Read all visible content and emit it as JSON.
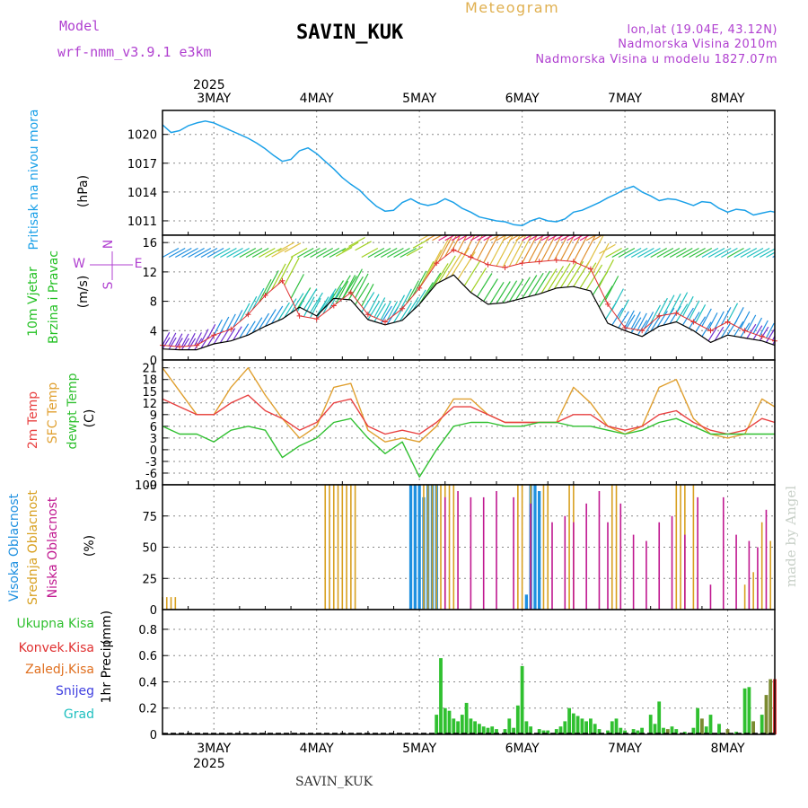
{
  "header": {
    "model_label": "Model",
    "model_value": "wrf-nmm_v3.9.1  e3km",
    "station": "SAVIN_KUK",
    "meteogram": "Meteogram",
    "lonlat": "lon,lat (19.04E, 43.12N)",
    "altitude": "Nadmorska Visina 2010m",
    "model_altitude": "Nadmorska Visina u modelu 1827.07m"
  },
  "footer": {
    "station": "SAVIN_KUK",
    "credit": "made by Angel"
  },
  "time_axis": {
    "year": "2025",
    "start_hour": 0,
    "end_hour": 143,
    "days": [
      {
        "label": "3MAY",
        "hour": 12
      },
      {
        "label": "4MAY",
        "hour": 36
      },
      {
        "label": "5MAY",
        "hour": 60
      },
      {
        "label": "6MAY",
        "hour": 84
      },
      {
        "label": "7MAY",
        "hour": 108
      },
      {
        "label": "8MAY",
        "hour": 132
      }
    ]
  },
  "colors": {
    "pressure": "#1aa0e8",
    "wind_label": "#22c022",
    "wind_speed": "#000000",
    "gust": "#e03030",
    "temp2m": "#e84040",
    "sfc_temp": "#e0a030",
    "dewpoint": "#30c030",
    "high_cloud": "#1e90e0",
    "mid_cloud": "#d8a020",
    "low_cloud": "#c01890",
    "total_precip": "#30c030",
    "convective": "#e03030",
    "frozen": "#e07020",
    "snow": "#4040e0",
    "graupel": "#20c0c0",
    "legend_purple": "#b040d0"
  },
  "chart_data": [
    {
      "type": "line",
      "title": "Pritisak na nivou mora",
      "ylabel": "(hPa)",
      "ylim": [
        1009.5,
        1022.5
      ],
      "yticks": [
        1011,
        1014,
        1017,
        1020
      ],
      "series": [
        {
          "name": "Pritisak na nivou mora",
          "x": [
            0,
            2,
            4,
            6,
            8,
            10,
            12,
            14,
            16,
            18,
            20,
            22,
            24,
            26,
            28,
            30,
            32,
            34,
            36,
            38,
            40,
            42,
            44,
            46,
            48,
            50,
            52,
            54,
            56,
            58,
            60,
            62,
            64,
            66,
            68,
            70,
            72,
            74,
            76,
            78,
            80,
            82,
            84,
            86,
            88,
            90,
            92,
            94,
            96,
            98,
            100,
            102,
            104,
            106,
            108,
            110,
            112,
            114,
            116,
            118,
            120,
            122,
            124,
            126,
            128,
            130,
            132,
            134,
            136,
            138,
            140,
            142,
            143
          ],
          "values": [
            1021.0,
            1020.2,
            1020.4,
            1020.9,
            1021.2,
            1021.4,
            1021.2,
            1020.8,
            1020.4,
            1020.0,
            1019.6,
            1019.1,
            1018.5,
            1017.8,
            1017.2,
            1017.4,
            1018.3,
            1018.6,
            1018.0,
            1017.2,
            1016.4,
            1015.5,
            1014.8,
            1014.2,
            1013.3,
            1012.5,
            1012.0,
            1012.1,
            1012.9,
            1013.3,
            1012.8,
            1012.6,
            1012.8,
            1013.3,
            1012.9,
            1012.3,
            1011.9,
            1011.4,
            1011.2,
            1011.0,
            1010.9,
            1010.6,
            1010.5,
            1011.0,
            1011.3,
            1011.0,
            1010.9,
            1011.2,
            1011.9,
            1012.1,
            1012.5,
            1012.9,
            1013.4,
            1013.8,
            1014.3,
            1014.6,
            1014.0,
            1013.6,
            1013.1,
            1013.3,
            1013.2,
            1012.9,
            1012.6,
            1013.0,
            1012.9,
            1012.3,
            1011.9,
            1012.2,
            1012.1,
            1011.6,
            1011.8,
            1012.0,
            1011.9
          ]
        }
      ]
    },
    {
      "type": "line",
      "title": "10m Vjetar",
      "subtitle": "Brzina i Pravac",
      "ylabel": "(m/s)",
      "ylim": [
        0,
        17
      ],
      "yticks": [
        0,
        4,
        8,
        12,
        16
      ],
      "direction_legend": {
        "n": "N",
        "s": "S",
        "e": "E",
        "w": "W"
      },
      "series": [
        {
          "name": "10m wind speed",
          "x": [
            0,
            4,
            8,
            12,
            16,
            20,
            24,
            28,
            32,
            36,
            40,
            44,
            48,
            52,
            56,
            60,
            64,
            68,
            72,
            76,
            80,
            84,
            88,
            92,
            96,
            100,
            104,
            108,
            112,
            116,
            120,
            124,
            128,
            132,
            136,
            140,
            143
          ],
          "values": [
            1.5,
            1.4,
            1.4,
            2.2,
            2.6,
            3.4,
            4.6,
            5.6,
            7.2,
            6.0,
            8.4,
            8.2,
            5.5,
            4.8,
            5.4,
            7.6,
            10.4,
            11.6,
            9.2,
            7.6,
            7.8,
            8.4,
            9.0,
            9.8,
            10.0,
            9.4,
            5.0,
            4.0,
            3.2,
            4.6,
            5.2,
            4.0,
            2.4,
            3.4,
            3.0,
            2.6,
            2.0
          ]
        },
        {
          "name": "wind gust",
          "x": [
            0,
            4,
            8,
            12,
            16,
            20,
            24,
            28,
            32,
            36,
            40,
            44,
            48,
            52,
            56,
            60,
            64,
            68,
            72,
            76,
            80,
            84,
            88,
            92,
            96,
            100,
            104,
            108,
            112,
            116,
            120,
            124,
            128,
            132,
            136,
            140,
            143
          ],
          "values": [
            2.0,
            1.8,
            2.0,
            3.4,
            4.2,
            6.2,
            8.8,
            10.8,
            6.0,
            5.6,
            7.4,
            9.2,
            6.2,
            5.2,
            7.0,
            9.8,
            13.2,
            15.0,
            14.0,
            13.0,
            12.6,
            13.2,
            13.4,
            13.6,
            13.4,
            12.4,
            7.6,
            4.4,
            4.0,
            6.0,
            6.4,
            5.2,
            4.0,
            5.2,
            4.0,
            3.2,
            2.6
          ]
        }
      ]
    },
    {
      "type": "line",
      "title": "2m Temp",
      "ylabel": "(C)",
      "ylim": [
        -9,
        23
      ],
      "yticks": [
        -9,
        -6,
        -3,
        0,
        3,
        6,
        9,
        12,
        15,
        18,
        21
      ],
      "series": [
        {
          "name": "2m Temp",
          "x": [
            0,
            4,
            8,
            12,
            16,
            20,
            24,
            28,
            32,
            36,
            40,
            44,
            48,
            52,
            56,
            60,
            64,
            68,
            72,
            76,
            80,
            84,
            88,
            92,
            96,
            100,
            104,
            108,
            112,
            116,
            120,
            124,
            128,
            132,
            136,
            140,
            143
          ],
          "values": [
            13,
            11,
            9,
            9,
            12,
            14,
            10,
            8,
            5,
            7,
            12,
            13,
            6,
            4,
            5,
            4,
            7,
            11,
            11,
            9,
            7,
            7,
            7,
            7,
            9,
            9,
            6,
            5,
            6,
            9,
            10,
            7,
            5,
            4,
            5,
            8,
            7
          ]
        },
        {
          "name": "SFC Temp",
          "x": [
            0,
            4,
            8,
            12,
            16,
            20,
            24,
            28,
            32,
            36,
            40,
            44,
            48,
            52,
            56,
            60,
            64,
            68,
            72,
            76,
            80,
            84,
            88,
            92,
            96,
            100,
            104,
            108,
            112,
            116,
            120,
            124,
            128,
            132,
            136,
            140,
            143
          ],
          "values": [
            21,
            15,
            9,
            9,
            16,
            21,
            14,
            8,
            3,
            6,
            16,
            17,
            5,
            2,
            3,
            2,
            6,
            13,
            13,
            9,
            7,
            7,
            7,
            7,
            16,
            12,
            6,
            4,
            6,
            16,
            18,
            8,
            4,
            3,
            4,
            13,
            11
          ]
        },
        {
          "name": "dewpt Temp",
          "x": [
            0,
            4,
            8,
            12,
            16,
            20,
            24,
            28,
            32,
            36,
            40,
            44,
            48,
            52,
            56,
            60,
            64,
            68,
            72,
            76,
            80,
            84,
            88,
            92,
            96,
            100,
            104,
            108,
            112,
            116,
            120,
            124,
            128,
            132,
            136,
            140,
            143
          ],
          "values": [
            6,
            4,
            4,
            2,
            5,
            6,
            5,
            -2,
            1,
            3,
            7,
            8,
            3,
            -1,
            2,
            -7,
            0,
            6,
            7,
            7,
            6,
            6,
            7,
            7,
            6,
            6,
            5,
            4,
            5,
            7,
            8,
            6,
            4,
            4,
            4,
            4,
            4
          ]
        }
      ]
    },
    {
      "type": "bar",
      "title": "Oblacnost",
      "ylabel": "(%)",
      "ylim": [
        0,
        100
      ],
      "yticks": [
        0,
        25,
        50,
        75,
        100
      ],
      "series": [
        {
          "name": "Visoka Oblacnost",
          "x": [
            58,
            59,
            60,
            61,
            62,
            63,
            64,
            85,
            86,
            87,
            88
          ],
          "values": [
            100,
            100,
            100,
            90,
            100,
            100,
            100,
            12,
            100,
            100,
            95
          ]
        },
        {
          "name": "Srednja Oblacnost",
          "x": [
            0,
            1,
            2,
            3,
            38,
            39,
            40,
            41,
            42,
            43,
            44,
            45,
            61,
            62,
            63,
            64,
            65,
            66,
            67,
            68,
            83,
            84,
            86,
            89,
            90,
            95,
            96,
            105,
            106,
            120,
            121,
            122,
            124,
            136,
            138,
            140,
            142
          ],
          "values": [
            10,
            10,
            10,
            10,
            100,
            100,
            100,
            100,
            100,
            100,
            100,
            100,
            100,
            100,
            100,
            100,
            100,
            100,
            100,
            100,
            100,
            100,
            100,
            100,
            100,
            100,
            100,
            100,
            100,
            100,
            100,
            100,
            100,
            20,
            30,
            70,
            55
          ]
        },
        {
          "name": "Niska Oblacnost",
          "x": [
            66,
            69,
            72,
            75,
            78,
            82,
            86,
            91,
            94,
            96,
            99,
            102,
            104,
            107,
            110,
            113,
            116,
            119,
            122,
            125,
            128,
            131,
            134,
            137,
            139,
            141
          ],
          "values": [
            90,
            95,
            90,
            90,
            95,
            90,
            85,
            70,
            75,
            70,
            85,
            95,
            70,
            85,
            60,
            55,
            70,
            75,
            60,
            90,
            20,
            90,
            60,
            55,
            50,
            80
          ]
        }
      ]
    },
    {
      "type": "bar",
      "title": "1hr Precip",
      "ylabel": "(mm)",
      "ylim": [
        0,
        0.95
      ],
      "yticks": [
        0,
        0.2,
        0.4,
        0.6,
        0.8
      ],
      "ytick_labels": [
        "0",
        "0.2",
        "0.4",
        "0.6",
        "0.8"
      ],
      "legend": [
        "Ukupna Kisa",
        "Konvek.Kisa",
        "Zaledj.Kisa",
        "Snijeg",
        "Grad"
      ],
      "series": [
        {
          "name": "Ukupna Kisa",
          "x": [
            64,
            65,
            66,
            67,
            68,
            69,
            70,
            71,
            72,
            73,
            74,
            75,
            76,
            77,
            78,
            80,
            81,
            82,
            83,
            84,
            85,
            86,
            88,
            89,
            90,
            92,
            93,
            94,
            95,
            96,
            97,
            98,
            99,
            100,
            101,
            102,
            104,
            105,
            106,
            107,
            108,
            110,
            111,
            112,
            114,
            115,
            116,
            117,
            118,
            119,
            120,
            122,
            124,
            125,
            126,
            127,
            128,
            130,
            132,
            134,
            136,
            137,
            138,
            140,
            141,
            142
          ],
          "values": [
            0.15,
            0.58,
            0.2,
            0.18,
            0.12,
            0.1,
            0.15,
            0.24,
            0.12,
            0.1,
            0.08,
            0.06,
            0.05,
            0.06,
            0.04,
            0.04,
            0.12,
            0.05,
            0.22,
            0.52,
            0.1,
            0.06,
            0.04,
            0.03,
            0.03,
            0.04,
            0.06,
            0.1,
            0.2,
            0.16,
            0.14,
            0.12,
            0.1,
            0.12,
            0.08,
            0.04,
            0.03,
            0.1,
            0.12,
            0.05,
            0.03,
            0.04,
            0.03,
            0.05,
            0.15,
            0.08,
            0.25,
            0.05,
            0.04,
            0.06,
            0.04,
            0.02,
            0.05,
            0.2,
            0.12,
            0.06,
            0.15,
            0.08,
            0.04,
            0.02,
            0.35,
            0.36,
            0.1,
            0.15,
            0.3,
            0.42
          ]
        },
        {
          "name": "Konvek.Kisa",
          "x": [
            143
          ],
          "values": [
            0.42
          ]
        }
      ]
    }
  ]
}
